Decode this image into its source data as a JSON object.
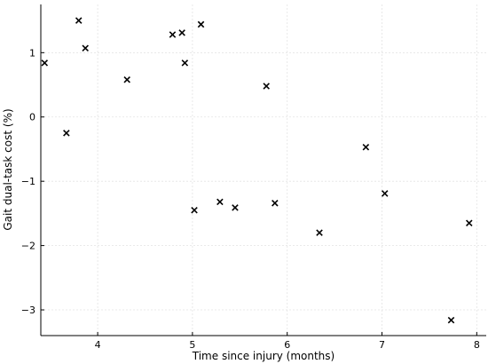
{
  "chart_data": {
    "type": "scatter",
    "title": "",
    "xlabel": "Time since injury (months)",
    "ylabel": "Gait dual-task cost (%)",
    "xlim": [
      3.4,
      8.1
    ],
    "ylim": [
      -3.4,
      1.75
    ],
    "xticks": [
      4,
      5,
      6,
      7,
      8
    ],
    "yticks": [
      -3,
      -2,
      -1,
      0,
      1
    ],
    "xtick_labels": [
      "4",
      "5",
      "6",
      "7",
      "8"
    ],
    "ytick_labels": [
      "−3",
      "−2",
      "−1",
      "0",
      "1"
    ],
    "grid": true,
    "marker": "x",
    "marker_color": "#000000",
    "points": [
      {
        "x": 3.44,
        "y": 0.84
      },
      {
        "x": 3.67,
        "y": -0.25
      },
      {
        "x": 3.8,
        "y": 1.5
      },
      {
        "x": 3.87,
        "y": 1.07
      },
      {
        "x": 4.31,
        "y": 0.58
      },
      {
        "x": 4.79,
        "y": 1.28
      },
      {
        "x": 4.89,
        "y": 1.31
      },
      {
        "x": 4.92,
        "y": 0.84
      },
      {
        "x": 5.02,
        "y": -1.45
      },
      {
        "x": 5.09,
        "y": 1.44
      },
      {
        "x": 5.29,
        "y": -1.32
      },
      {
        "x": 5.45,
        "y": -1.41
      },
      {
        "x": 5.78,
        "y": 0.48
      },
      {
        "x": 5.87,
        "y": -1.34
      },
      {
        "x": 6.34,
        "y": -1.8
      },
      {
        "x": 6.83,
        "y": -0.47
      },
      {
        "x": 7.03,
        "y": -1.19
      },
      {
        "x": 7.73,
        "y": -3.16
      },
      {
        "x": 7.92,
        "y": -1.65
      }
    ]
  }
}
